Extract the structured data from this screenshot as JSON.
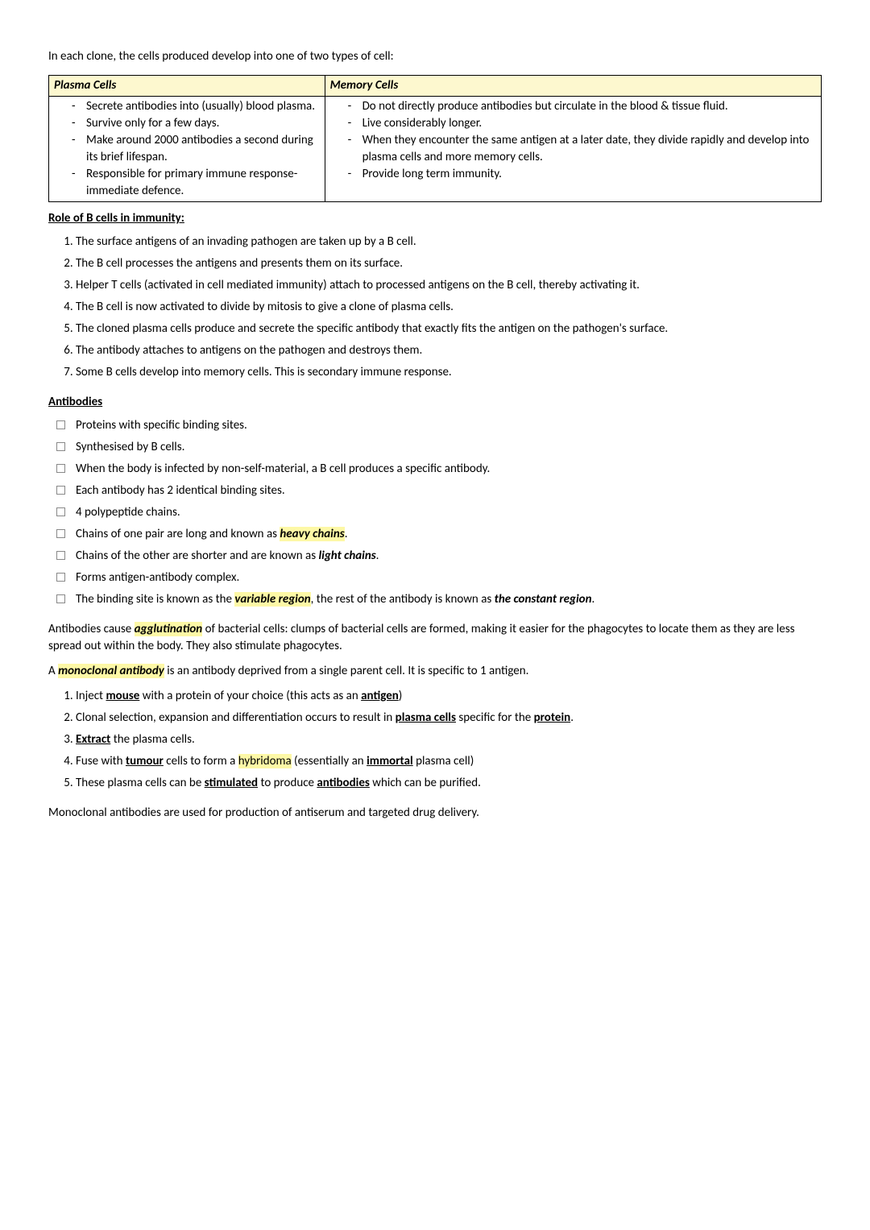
{
  "intro": "In each clone, the cells produced develop into one of two types of cell:",
  "table": {
    "headers": [
      "Plasma Cells",
      "Memory Cells"
    ],
    "left": [
      "Secrete antibodies into (usually) blood plasma.",
      "Survive only for a few days.",
      "Make around 2000 antibodies a second during its brief lifespan.",
      "Responsible for primary immune response- immediate defence."
    ],
    "right": [
      "Do not directly produce antibodies but circulate in the blood & tissue fluid.",
      "Live considerably longer.",
      "When they encounter the same antigen at a later date, they divide rapidly and develop into plasma cells and more memory cells.",
      "Provide long term immunity."
    ]
  },
  "role_head": "Role of B cells in immunity:",
  "role": [
    "The surface antigens of an invading pathogen are taken up by a B cell.",
    "The B cell processes the antigens and presents them on its surface.",
    "Helper T cells (activated in cell mediated immunity) attach to processed antigens on the B cell, thereby activating it.",
    "The B cell is now activated to divide by mitosis to give a clone of plasma cells.",
    "The cloned plasma cells produce and secrete the specific antibody that exactly fits the antigen on the pathogen's surface.",
    "The antibody attaches to antigens on the pathogen and destroys them.",
    "Some B cells develop into memory cells. This is secondary immune response."
  ],
  "ab_head": "Antibodies",
  "ab": {
    "i0": "Proteins with specific binding sites.",
    "i1": "Synthesised by B cells.",
    "i2": "When the body is infected by non-self-material, a B cell produces a specific antibody.",
    "i3": "Each antibody has 2 identical binding sites.",
    "i4": "4 polypeptide chains.",
    "i5a": "Chains of one pair are long and known as ",
    "i5b": "heavy chains",
    "i5c": ".",
    "i6a": "Chains of the other are shorter and are known as ",
    "i6b": "light chains",
    "i6c": ".",
    "i7": "Forms antigen-antibody complex.",
    "i8a": "The binding site is known as the ",
    "i8b": "variable region",
    "i8c": ", the rest of the antibody is known as ",
    "i8d": "the constant region",
    "i8e": "."
  },
  "agg": {
    "a": "Antibodies cause ",
    "b": "agglutination",
    "c": " of bacterial cells: clumps of bacterial cells are formed, making it easier for the phagocytes to locate them as they are less spread out within the body. They also stimulate phagocytes."
  },
  "mono": {
    "a": "A ",
    "b": "monoclonal antibody",
    "c": " is an antibody deprived from a single parent cell. It is specific to 1 antigen."
  },
  "steps": {
    "s1a": "Inject ",
    "s1b": "mouse",
    "s1c": " with a protein of your choice (this acts as an ",
    "s1d": "antigen",
    "s1e": ")",
    "s2a": "Clonal selection, expansion and differentiation occurs to result in ",
    "s2b": "plasma cells",
    "s2c": " specific for the ",
    "s2d": "protein",
    "s2e": ".",
    "s3a": "Extract",
    "s3b": " the plasma cells.",
    "s4a": "Fuse with ",
    "s4b": "tumour",
    "s4c": " cells to form a ",
    "s4d": "hybridoma",
    "s4e": " (essentially an ",
    "s4f": "immortal",
    "s4g": " plasma cell)",
    "s5a": "These plasma cells can be ",
    "s5b": "stimulated",
    "s5c": " to produce ",
    "s5d": "antibodies",
    "s5e": " which can be purified."
  },
  "closing": "Monoclonal antibodies are used for production of antiserum and targeted drug delivery."
}
